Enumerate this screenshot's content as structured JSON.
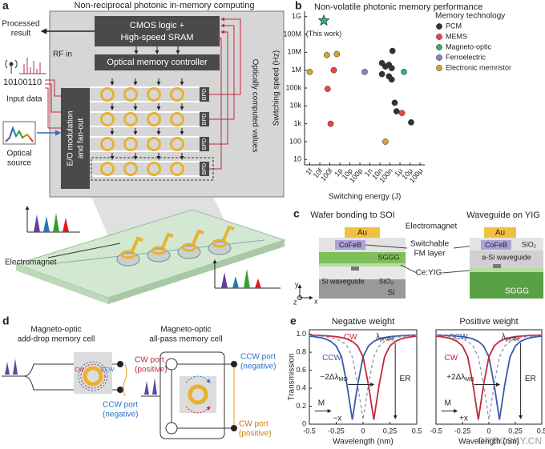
{
  "panel_labels": [
    "a",
    "b",
    "c",
    "d",
    "e"
  ],
  "a": {
    "title": "Non-reciprocal photonic in-memory computing",
    "cmos": [
      "CMOS logic +",
      "High-speed SRAM"
    ],
    "controller": "Optical memory controller",
    "eo": [
      "E/O modulation",
      "and fan-out"
    ],
    "bpd": "BPD",
    "processed": [
      "Processed",
      "result"
    ],
    "rf_in": "RF in",
    "bits": "10100110",
    "input": "Input data",
    "source": [
      "Optical",
      "source"
    ],
    "computed": "Optically computed values",
    "electromagnet": "Electromagnet"
  },
  "chart_data": [
    {
      "type": "scatter",
      "title": "Non-volatile photonic memory performance",
      "x_label": "Switching energy (J)",
      "y_label": "Switching speed (Hz)",
      "xscale": "log",
      "yscale": "log",
      "xlim": [
        3e-16,
        0.0003
      ],
      "ylim": [
        5,
        2000000000.0
      ],
      "xticks": [
        {
          "value": 1e-15,
          "label": "1f"
        },
        {
          "value": 1e-14,
          "label": "10f"
        },
        {
          "value": 1e-13,
          "label": "100f"
        },
        {
          "value": 1e-12,
          "label": "1p"
        },
        {
          "value": 1e-11,
          "label": "10p"
        },
        {
          "value": 1e-10,
          "label": "100p"
        },
        {
          "value": 1e-09,
          "label": "1n"
        },
        {
          "value": 1e-08,
          "label": "10n"
        },
        {
          "value": 1e-07,
          "label": "100n"
        },
        {
          "value": 1e-06,
          "label": "1μ"
        },
        {
          "value": 1e-05,
          "label": "10μ"
        },
        {
          "value": 0.0001,
          "label": "100μ"
        }
      ],
      "yticks": [
        10,
        100,
        {
          "value": 1000,
          "label": "1k"
        },
        {
          "value": 10000,
          "label": "10k"
        },
        {
          "value": 100000,
          "label": "100k"
        },
        {
          "value": 1000000,
          "label": "1M"
        },
        {
          "value": 10000000,
          "label": "10M"
        },
        {
          "value": 100000000,
          "label": "100M"
        },
        {
          "value": 1000000000,
          "label": "1G"
        }
      ],
      "legend_title": "Memory technology",
      "legend": "right",
      "series": [
        {
          "name": "PCM",
          "color": "#333333",
          "x": [
            1.8e-07,
            1.6e-08,
            3.5e-08,
            8e-08,
            1.5e-07,
            1.6e-08,
            8e-08,
            1.5e-07,
            3e-07,
            4.5e-07,
            1.3e-05
          ],
          "values": [
            12000000.0,
            2500000.0,
            1600000.0,
            2000000.0,
            1300000.0,
            600000.0,
            450000.0,
            300000.0,
            15000.0,
            5000.0,
            1200.0
          ]
        },
        {
          "name": "MEMS",
          "color": "#e8474a",
          "x": [
            2.5e-13,
            6e-14,
            1.2e-13,
            1.6e-06
          ],
          "values": [
            1000000.0,
            90000.0,
            1000.0,
            4000.0
          ]
        },
        {
          "name": "Magneto-optic",
          "color": "#2fb17a",
          "x": [
            2.5e-06
          ],
          "values": [
            800000.0
          ]
        },
        {
          "name": "Ferroelectric",
          "color": "#8c7fc0",
          "x": [
            3e-10
          ],
          "values": [
            800000.0
          ]
        },
        {
          "name": "Electronic memristor",
          "color": "#d4a72c",
          "x": [
            1e-15,
            5e-14,
            5e-13,
            3.5e-08
          ],
          "values": [
            800000.0,
            7000000.0,
            8000000.0,
            100
          ]
        }
      ],
      "highlight": {
        "label": "(This work)",
        "x": 2.5e-14,
        "y": 600000000.0,
        "color": "#2fb17a"
      }
    },
    {
      "type": "line",
      "title": "Negative weight",
      "x_label": "Wavelength (nm)",
      "y_label": "Transmission",
      "x": [
        -0.5,
        -0.45,
        -0.4,
        -0.35,
        -0.3,
        -0.25,
        -0.2,
        -0.15,
        -0.1,
        -0.05,
        0,
        0.05,
        0.1,
        0.15,
        0.2,
        0.25,
        0.3,
        0.35,
        0.4,
        0.45,
        0.5
      ],
      "xlim": [
        -0.5,
        0.5
      ],
      "ylim": [
        0,
        1.05
      ],
      "xticks": [
        -0.5,
        -0.25,
        0,
        0.25,
        0.5
      ],
      "yticks": [
        0,
        0.2,
        0.4,
        0.6,
        0.8,
        {
          "value": 1,
          "label": "1.0"
        }
      ],
      "series": [
        {
          "name": "CCW",
          "color": "#3a5aa8",
          "values": [
            0.979,
            0.973,
            0.963,
            0.948,
            0.921,
            0.869,
            0.749,
            0.439,
            0.05,
            0.439,
            0.749,
            0.869,
            0.921,
            0.948,
            0.963,
            0.973,
            0.979,
            0.983,
            0.987,
            0.989,
            0.991
          ]
        },
        {
          "name": "CW",
          "color": "#c0283c",
          "values": [
            0.991,
            0.989,
            0.987,
            0.983,
            0.979,
            0.973,
            0.963,
            0.948,
            0.921,
            0.869,
            0.749,
            0.439,
            0.05,
            0.439,
            0.749,
            0.869,
            0.921,
            0.948,
            0.963,
            0.973,
            0.979
          ]
        },
        {
          "color": "#8a8fa3",
          "dash": true,
          "values": [
            0.987,
            0.983,
            0.979,
            0.973,
            0.963,
            0.948,
            0.921,
            0.869,
            0.749,
            0.439,
            0.05,
            0.439,
            0.749,
            0.869,
            0.921,
            0.948,
            0.963,
            0.973,
            0.979,
            0.983,
            0.987
          ]
        }
      ],
      "annotations": {
        "probe": [
          "λ",
          "probe"
        ],
        "shift": [
          "−2Δλ",
          "MO"
        ],
        "er": "ER",
        "field": "M",
        "direction": "−x"
      }
    },
    {
      "type": "line",
      "title": "Positive weight",
      "x_label": "Wavelength (nm)",
      "x": [
        -0.5,
        -0.45,
        -0.4,
        -0.35,
        -0.3,
        -0.25,
        -0.2,
        -0.15,
        -0.1,
        -0.05,
        0,
        0.05,
        0.1,
        0.15,
        0.2,
        0.25,
        0.3,
        0.35,
        0.4,
        0.45,
        0.5
      ],
      "xlim": [
        -0.5,
        0.5
      ],
      "ylim": [
        0,
        1.05
      ],
      "xticks": [
        -0.5,
        -0.25,
        0,
        0.25,
        0.5
      ],
      "series": [
        {
          "name": "CCW",
          "color": "#3a5aa8",
          "values": [
            0.991,
            0.989,
            0.987,
            0.983,
            0.979,
            0.973,
            0.963,
            0.948,
            0.921,
            0.869,
            0.749,
            0.439,
            0.05,
            0.439,
            0.749,
            0.869,
            0.921,
            0.948,
            0.963,
            0.973,
            0.979
          ]
        },
        {
          "name": "CW",
          "color": "#c0283c",
          "values": [
            0.979,
            0.973,
            0.963,
            0.948,
            0.921,
            0.869,
            0.749,
            0.439,
            0.05,
            0.439,
            0.749,
            0.869,
            0.921,
            0.948,
            0.963,
            0.973,
            0.979,
            0.983,
            0.987,
            0.989,
            0.991
          ]
        },
        {
          "color": "#8a8fa3",
          "dash": true,
          "values": [
            0.987,
            0.983,
            0.979,
            0.973,
            0.963,
            0.948,
            0.921,
            0.869,
            0.749,
            0.439,
            0.05,
            0.439,
            0.749,
            0.869,
            0.921,
            0.948,
            0.963,
            0.973,
            0.979,
            0.983,
            0.987
          ]
        }
      ],
      "annotations": {
        "probe": [
          "λ",
          "probe"
        ],
        "shift": [
          "+2Δλ",
          "MO"
        ],
        "er": "ER",
        "field": "M",
        "direction": "+x"
      }
    }
  ],
  "c": {
    "left_title": "Wafer bonding to SOI",
    "right_title": "Waveguide on YIG",
    "electromagnet": "Electromagnet",
    "au": "Au",
    "cofeb": "CoFeB",
    "sio2": "SiO₂",
    "fm": [
      "Switchable",
      "FM layer"
    ],
    "sggg": "SGGG",
    "asi": "a-Si waveguide",
    "si_wg": "Si waveguide",
    "ceyig": "Ce:YIG",
    "si": "Si",
    "axes": [
      "y",
      "z",
      "x"
    ]
  },
  "d": {
    "left_title": [
      "Magneto-optic",
      "add-drop memory cell"
    ],
    "right_title": [
      "Magneto-optic",
      "all-pass memory cell"
    ],
    "cw_port": "CW port",
    "ccw_port": "CCW port",
    "positive": "(positive)",
    "negative": "(negative)",
    "cw": "CW",
    "ccw": "CCW"
  },
  "watermark": "OPTICSKY.CN"
}
